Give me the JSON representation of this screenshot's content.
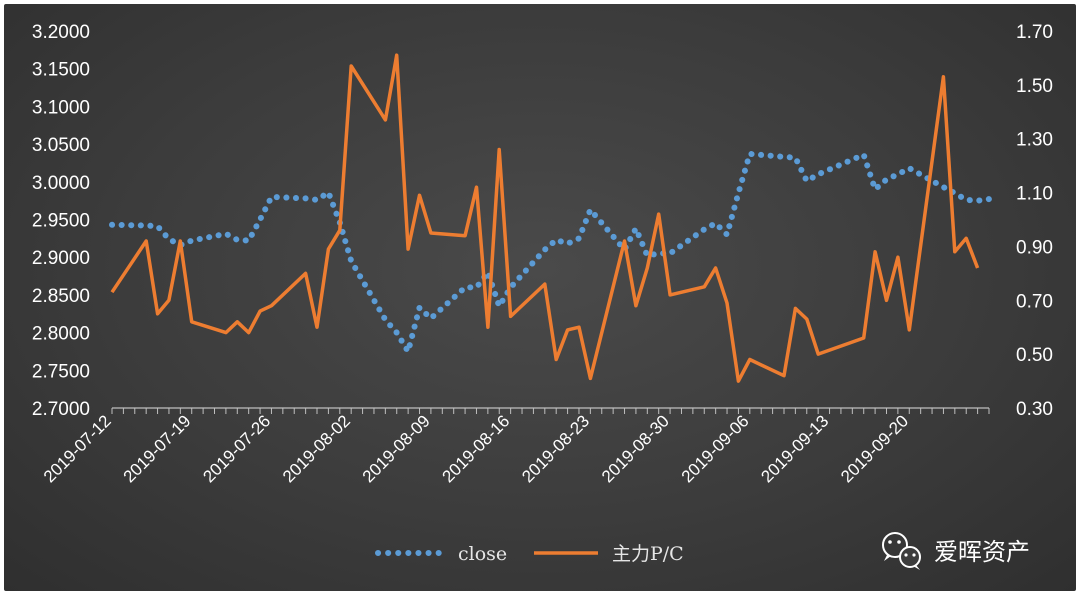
{
  "watermark": {
    "text": "爱晖资产",
    "icon": "wechat-icon"
  },
  "colors": {
    "background": "#3b3b3b",
    "close": "#5b9bd5",
    "pc": "#ed7d31",
    "axis": "#bfbfbf",
    "text": "#ffffff"
  },
  "chart_data": {
    "type": "line",
    "title": "",
    "x_ticks": [
      "2019-07-12",
      "2019-07-19",
      "2019-07-26",
      "2019-08-02",
      "2019-08-09",
      "2019-08-16",
      "2019-08-23",
      "2019-08-30",
      "2019-09-06",
      "2019-09-13",
      "2019-09-20"
    ],
    "x_range": [
      "2019-07-12",
      "2019-09-27"
    ],
    "y_left": {
      "min": 2.7,
      "max": 3.2,
      "step": 0.05,
      "tick_labels": [
        "3.2000",
        "3.1500",
        "3.1000",
        "3.0500",
        "3.0000",
        "2.9500",
        "2.9000",
        "2.8500",
        "2.8000",
        "2.7500",
        "2.7000"
      ]
    },
    "y_right": {
      "min": 0.3,
      "max": 1.7,
      "step": 0.2,
      "tick_labels": [
        "1.70",
        "1.50",
        "1.30",
        "1.10",
        "0.90",
        "0.70",
        "0.50",
        "0.30"
      ]
    },
    "grid": false,
    "legend": {
      "position": "bottom"
    },
    "series": [
      {
        "name": "close",
        "axis": "left",
        "style": "dotted",
        "points": [
          [
            "2019-07-12",
            2.943
          ],
          [
            "2019-07-15",
            2.942
          ],
          [
            "2019-07-16",
            2.941
          ],
          [
            "2019-07-17",
            2.924
          ],
          [
            "2019-07-18",
            2.916
          ],
          [
            "2019-07-19",
            2.922
          ],
          [
            "2019-07-22",
            2.931
          ],
          [
            "2019-07-23",
            2.923
          ],
          [
            "2019-07-24",
            2.922
          ],
          [
            "2019-07-25",
            2.95
          ],
          [
            "2019-07-26",
            2.98
          ],
          [
            "2019-07-29",
            2.978
          ],
          [
            "2019-07-30",
            2.976
          ],
          [
            "2019-07-31",
            2.986
          ],
          [
            "2019-08-01",
            2.946
          ],
          [
            "2019-08-02",
            2.895
          ],
          [
            "2019-08-05",
            2.817
          ],
          [
            "2019-08-06",
            2.8
          ],
          [
            "2019-08-07",
            2.775
          ],
          [
            "2019-08-08",
            2.833
          ],
          [
            "2019-08-09",
            2.819
          ],
          [
            "2019-08-12",
            2.86
          ],
          [
            "2019-08-13",
            2.86
          ],
          [
            "2019-08-14",
            2.88
          ],
          [
            "2019-08-15",
            2.835
          ],
          [
            "2019-08-16",
            2.86
          ],
          [
            "2019-08-19",
            2.91
          ],
          [
            "2019-08-20",
            2.923
          ],
          [
            "2019-08-21",
            2.918
          ],
          [
            "2019-08-22",
            2.925
          ],
          [
            "2019-08-23",
            2.963
          ],
          [
            "2019-08-26",
            2.91
          ],
          [
            "2019-08-27",
            2.938
          ],
          [
            "2019-08-28",
            2.902
          ],
          [
            "2019-08-29",
            2.905
          ],
          [
            "2019-08-30",
            2.905
          ],
          [
            "2019-09-02",
            2.937
          ],
          [
            "2019-09-03",
            2.945
          ],
          [
            "2019-09-04",
            2.93
          ],
          [
            "2019-09-05",
            2.985
          ],
          [
            "2019-09-06",
            3.037
          ],
          [
            "2019-09-09",
            3.033
          ],
          [
            "2019-09-10",
            3.032
          ],
          [
            "2019-09-11",
            3.001
          ],
          [
            "2019-09-12",
            3.01
          ],
          [
            "2019-09-16",
            3.036
          ],
          [
            "2019-09-17",
            2.99
          ],
          [
            "2019-09-18",
            3.003
          ],
          [
            "2019-09-19",
            3.01
          ],
          [
            "2019-09-20",
            3.018
          ],
          [
            "2019-09-23",
            2.993
          ],
          [
            "2019-09-24",
            2.985
          ],
          [
            "2019-09-25",
            2.976
          ],
          [
            "2019-09-26",
            2.975
          ],
          [
            "2019-09-27",
            2.977
          ]
        ]
      },
      {
        "name": "主力P/C",
        "axis": "right",
        "style": "solid",
        "points": [
          [
            "2019-07-12",
            0.73
          ],
          [
            "2019-07-15",
            0.92
          ],
          [
            "2019-07-16",
            0.65
          ],
          [
            "2019-07-17",
            0.7
          ],
          [
            "2019-07-18",
            0.92
          ],
          [
            "2019-07-19",
            0.62
          ],
          [
            "2019-07-22",
            0.58
          ],
          [
            "2019-07-23",
            0.62
          ],
          [
            "2019-07-24",
            0.58
          ],
          [
            "2019-07-25",
            0.66
          ],
          [
            "2019-07-26",
            0.68
          ],
          [
            "2019-07-29",
            0.8
          ],
          [
            "2019-07-30",
            0.6
          ],
          [
            "2019-07-31",
            0.89
          ],
          [
            "2019-08-01",
            0.96
          ],
          [
            "2019-08-02",
            1.57
          ],
          [
            "2019-08-05",
            1.37
          ],
          [
            "2019-08-06",
            1.61
          ],
          [
            "2019-08-07",
            0.89
          ],
          [
            "2019-08-08",
            1.09
          ],
          [
            "2019-08-09",
            0.95
          ],
          [
            "2019-08-12",
            0.94
          ],
          [
            "2019-08-13",
            1.12
          ],
          [
            "2019-08-14",
            0.6
          ],
          [
            "2019-08-15",
            1.26
          ],
          [
            "2019-08-16",
            0.64
          ],
          [
            "2019-08-19",
            0.76
          ],
          [
            "2019-08-20",
            0.48
          ],
          [
            "2019-08-21",
            0.59
          ],
          [
            "2019-08-22",
            0.6
          ],
          [
            "2019-08-23",
            0.41
          ],
          [
            "2019-08-26",
            0.92
          ],
          [
            "2019-08-27",
            0.68
          ],
          [
            "2019-08-28",
            0.82
          ],
          [
            "2019-08-29",
            1.02
          ],
          [
            "2019-08-30",
            0.72
          ],
          [
            "2019-09-02",
            0.75
          ],
          [
            "2019-09-03",
            0.82
          ],
          [
            "2019-09-04",
            0.69
          ],
          [
            "2019-09-05",
            0.4
          ],
          [
            "2019-09-06",
            0.48
          ],
          [
            "2019-09-09",
            0.42
          ],
          [
            "2019-09-10",
            0.67
          ],
          [
            "2019-09-11",
            0.63
          ],
          [
            "2019-09-12",
            0.5
          ],
          [
            "2019-09-16",
            0.56
          ],
          [
            "2019-09-17",
            0.88
          ],
          [
            "2019-09-18",
            0.7
          ],
          [
            "2019-09-19",
            0.86
          ],
          [
            "2019-09-20",
            0.59
          ],
          [
            "2019-09-23",
            1.53
          ],
          [
            "2019-09-24",
            0.88
          ],
          [
            "2019-09-25",
            0.93
          ],
          [
            "2019-09-26",
            0.82
          ]
        ]
      }
    ]
  }
}
